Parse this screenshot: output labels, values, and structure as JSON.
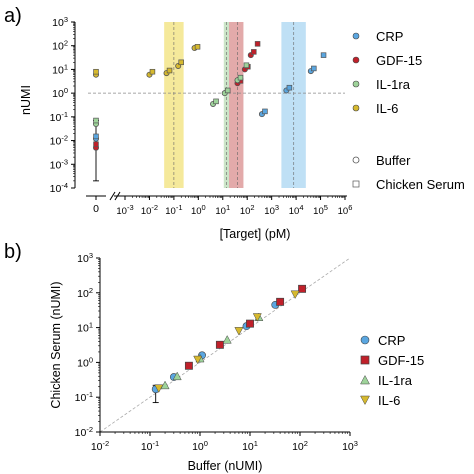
{
  "panel_a_label": "a)",
  "panel_b_label": "b)",
  "chart_data": [
    {
      "type": "scatter",
      "panel": "a",
      "xlabel": "[Target] (pM)",
      "ylabel": "nUMI",
      "xscale": "log",
      "yscale": "log",
      "xlim": [
        0.001,
        1000000
      ],
      "ylim": [
        0.0001,
        1000
      ],
      "zero_tick_label": "0",
      "x_tick_labels": [
        "10-3",
        "10-2",
        "10-1",
        "100",
        "101",
        "102",
        "103",
        "104",
        "105",
        "106"
      ],
      "y_tick_labels": [
        "10-4",
        "10-3",
        "10-2",
        "10-1",
        "100",
        "101",
        "102",
        "103"
      ],
      "reference_line_y": 1,
      "legend_position": "right",
      "legend_markers": [
        {
          "label": "CRP",
          "marker": "circle",
          "color": "#5aa6e0"
        },
        {
          "label": "GDF-15",
          "marker": "circle",
          "color": "#c0202a"
        },
        {
          "label": "IL-1ra",
          "marker": "circle",
          "color": "#9ed39a"
        },
        {
          "label": "IL-6",
          "marker": "circle",
          "color": "#d6b92e"
        },
        {
          "label": "Buffer",
          "marker": "open-circle",
          "color": "#555555"
        },
        {
          "label": "Chicken Serum",
          "marker": "open-square",
          "color": "#555555"
        }
      ],
      "shaded_bands": [
        {
          "series": "IL-6",
          "x_range": [
            0.04,
            0.25
          ],
          "center": 0.1,
          "color": "#f2e27a"
        },
        {
          "series": "IL-1ra",
          "x_range": [
            11,
            18
          ],
          "center": 14,
          "color": "#b9dcb5"
        },
        {
          "series": "GDF-15",
          "x_range": [
            18,
            70
          ],
          "center": 40,
          "color": "#d98d8d"
        },
        {
          "series": "CRP",
          "x_range": [
            2500,
            25000
          ],
          "center": 8000,
          "color": "#a9d6f2"
        }
      ],
      "series": [
        {
          "name": "CRP",
          "color": "#5aa6e0",
          "buffer": [
            {
              "x": 400,
              "y": 0.13
            },
            {
              "x": 4000,
              "y": 1.3
            },
            {
              "x": 40000,
              "y": 8.5
            }
          ],
          "serum": [
            {
              "x": 400,
              "y": 0.17
            },
            {
              "x": 4000,
              "y": 1.7
            },
            {
              "x": 40000,
              "y": 11
            },
            {
              "x": 100000,
              "y": 40
            }
          ],
          "zero_buffer": {
            "y": 0.012
          },
          "zero_serum": {
            "y": 0.015
          }
        },
        {
          "name": "GDF-15",
          "color": "#c0202a",
          "buffer": [
            {
              "x": 40,
              "y": 2.6
            },
            {
              "x": 80,
              "y": 10
            },
            {
              "x": 140,
              "y": 40
            }
          ],
          "serum": [
            {
              "x": 40,
              "y": 3.3
            },
            {
              "x": 80,
              "y": 13
            },
            {
              "x": 140,
              "y": 55
            },
            {
              "x": 200,
              "y": 120
            }
          ],
          "zero_buffer": {
            "y": 0.005
          },
          "zero_serum": {
            "y": 0.007
          }
        },
        {
          "name": "IL-1ra",
          "color": "#9ed39a",
          "buffer": [
            {
              "x": 4,
              "y": 0.35
            },
            {
              "x": 12,
              "y": 1.0
            },
            {
              "x": 40,
              "y": 3.5
            }
          ],
          "serum": [
            {
              "x": 4,
              "y": 0.45
            },
            {
              "x": 12,
              "y": 1.3
            },
            {
              "x": 40,
              "y": 4.5
            },
            {
              "x": 70,
              "y": 15
            }
          ],
          "zero_buffer": {
            "y": 0.05
          },
          "zero_serum": {
            "y": 0.07
          }
        },
        {
          "name": "IL-6",
          "color": "#d6b92e",
          "buffer": [
            {
              "x": 0.01,
              "y": 6
            },
            {
              "x": 0.05,
              "y": 7
            },
            {
              "x": 0.15,
              "y": 14
            },
            {
              "x": 0.7,
              "y": 80
            }
          ],
          "serum": [
            {
              "x": 0.01,
              "y": 8
            },
            {
              "x": 0.05,
              "y": 9
            },
            {
              "x": 0.15,
              "y": 20
            },
            {
              "x": 0.7,
              "y": 90
            }
          ],
          "zero_buffer": {
            "y": 6
          },
          "zero_serum": {
            "y": 8
          }
        }
      ],
      "zero_errorbar": {
        "low": 0.0002,
        "high": 0.07
      }
    },
    {
      "type": "scatter",
      "panel": "b",
      "xlabel": "Buffer (nUMI)",
      "ylabel": "Chicken Serum (nUMI)",
      "xscale": "log",
      "yscale": "log",
      "xlim": [
        0.01,
        1000
      ],
      "ylim": [
        0.01,
        1000
      ],
      "x_tick_labels": [
        "10-2",
        "10-1",
        "100",
        "101",
        "102",
        "103"
      ],
      "y_tick_labels": [
        "10-2",
        "10-1",
        "100",
        "101",
        "102",
        "103"
      ],
      "identity_line": true,
      "legend_position": "right",
      "series": [
        {
          "name": "CRP",
          "marker": "circle",
          "color": "#5aa6e0",
          "points": [
            {
              "x": 0.13,
              "y": 0.17
            },
            {
              "x": 0.3,
              "y": 0.38
            },
            {
              "x": 1.1,
              "y": 1.6
            },
            {
              "x": 8.5,
              "y": 11
            },
            {
              "x": 32,
              "y": 45
            }
          ]
        },
        {
          "name": "GDF-15",
          "marker": "square",
          "color": "#c0202a",
          "points": [
            {
              "x": 0.6,
              "y": 0.8
            },
            {
              "x": 2.5,
              "y": 3.2
            },
            {
              "x": 10,
              "y": 13
            },
            {
              "x": 40,
              "y": 55
            },
            {
              "x": 110,
              "y": 130
            }
          ]
        },
        {
          "name": "IL-1ra",
          "marker": "triangle-up",
          "color": "#9ed39a",
          "points": [
            {
              "x": 0.2,
              "y": 0.22
            },
            {
              "x": 0.35,
              "y": 0.4
            },
            {
              "x": 1.0,
              "y": 1.3
            },
            {
              "x": 3.5,
              "y": 4.5
            },
            {
              "x": 15,
              "y": 20
            }
          ]
        },
        {
          "name": "IL-6",
          "marker": "triangle-down",
          "color": "#d6b92e",
          "points": [
            {
              "x": 0.15,
              "y": 0.18
            },
            {
              "x": 0.9,
              "y": 1.2
            },
            {
              "x": 6,
              "y": 8
            },
            {
              "x": 14,
              "y": 20
            },
            {
              "x": 80,
              "y": 90
            }
          ]
        }
      ],
      "errorbar": {
        "x": 0.13,
        "low": 0.07,
        "high": 0.22
      }
    }
  ]
}
